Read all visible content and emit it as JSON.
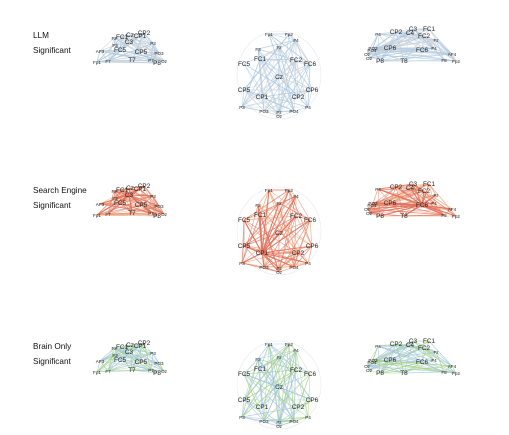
{
  "rows": [
    {
      "id": "llm",
      "label_line1": "LLM",
      "label_line2": "Significant",
      "panels": [
        {
          "view": "left",
          "channels": [
            "FC1",
            "Cz",
            "CP1",
            "C3",
            "FC5",
            "CP5",
            "P3",
            "F3",
            "Fz",
            "AF3",
            "PO3",
            "F7",
            "T7",
            "P7",
            "Fp1",
            "CP2",
            "P8",
            "Oz"
          ]
        },
        {
          "view": "top",
          "channels": [
            "Fp1",
            "Fp2",
            "F4",
            "F3",
            "Fz",
            "FC1",
            "FC2",
            "FC5",
            "FC6",
            "Cz",
            "CP1",
            "CP2",
            "CP5",
            "CP6",
            "P3",
            "P4",
            "PO3",
            "PO4",
            "Pz",
            "Oz"
          ]
        },
        {
          "view": "right",
          "channels": [
            "CP2",
            "C4",
            "P4",
            "FC2",
            "C3",
            "FC1",
            "Fz",
            "F4",
            "PO4",
            "CP6",
            "FC6",
            "F8",
            "AF4",
            "Fp2",
            "O2",
            "P8",
            "T8",
            "Oz",
            "PO3"
          ]
        }
      ]
    },
    {
      "id": "search",
      "label_line1": "Search Engine",
      "label_line2": "Significant",
      "panels": [
        {
          "view": "left",
          "channels": [
            "FC1",
            "Cz",
            "CP1",
            "C3",
            "FC5",
            "CP5",
            "P3",
            "F3",
            "Fz",
            "AF3",
            "PO3",
            "F7",
            "T7",
            "P7",
            "Fp1",
            "CP2",
            "P8",
            "Oz"
          ]
        },
        {
          "view": "top",
          "channels": [
            "Fp1",
            "Fp2",
            "F4",
            "F3",
            "Fz",
            "FC1",
            "FC2",
            "FC5",
            "FC6",
            "Cz",
            "CP1",
            "CP2",
            "CP5",
            "CP6",
            "P3",
            "P4",
            "PO3",
            "PO4",
            "Pz",
            "Oz"
          ]
        },
        {
          "view": "right",
          "channels": [
            "CP2",
            "C4",
            "P4",
            "FC2",
            "C3",
            "FC1",
            "Fz",
            "F4",
            "PO4",
            "CP6",
            "FC6",
            "F8",
            "AF4",
            "Fp2",
            "O2",
            "P8",
            "T8",
            "Oz",
            "PO3"
          ]
        }
      ]
    },
    {
      "id": "brain",
      "label_line1": "Brain Only",
      "label_line2": "Significant",
      "panels": [
        {
          "view": "left",
          "channels": [
            "FC1",
            "Cz",
            "CP1",
            "C3",
            "FC5",
            "CP5",
            "P3",
            "F3",
            "Fz",
            "AF3",
            "PO3",
            "F7",
            "T7",
            "P7",
            "Fp1",
            "CP2",
            "P8",
            "Oz"
          ]
        },
        {
          "view": "top",
          "channels": [
            "Fp1",
            "Fp2",
            "F4",
            "F3",
            "Fz",
            "FC1",
            "FC2",
            "FC5",
            "FC6",
            "Cz",
            "CP1",
            "CP2",
            "CP5",
            "CP6",
            "P3",
            "P4",
            "PO3",
            "PO4",
            "Pz",
            "Oz"
          ]
        },
        {
          "view": "right",
          "channels": [
            "CP2",
            "C4",
            "P4",
            "FC2",
            "C3",
            "FC1",
            "Fz",
            "F4",
            "PO4",
            "CP6",
            "FC6",
            "F8",
            "AF4",
            "Fp2",
            "O2",
            "P8",
            "T8",
            "Oz",
            "PO3"
          ]
        }
      ]
    }
  ],
  "colors": {
    "edge_blue": "#9fc3e0",
    "edge_red": "#e0705c",
    "edge_green": "#9fd07a",
    "edge_orange": "#f0a070",
    "edge_gray": "#c9cfd6",
    "background": "#ffffff",
    "text": "#111111"
  }
}
